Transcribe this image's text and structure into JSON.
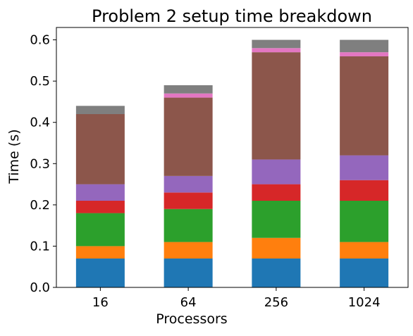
{
  "chart_data": {
    "type": "bar",
    "stacked": true,
    "title": "Problem 2 setup time breakdown",
    "xlabel": "Processors",
    "ylabel": "Time (s)",
    "categories": [
      "16",
      "64",
      "256",
      "1024"
    ],
    "ylim": [
      0,
      0.63
    ],
    "yticks": [
      "0.0",
      "0.1",
      "0.2",
      "0.3",
      "0.4",
      "0.5",
      "0.6"
    ],
    "grid": false,
    "legend": "none",
    "series": [
      {
        "color": "#1f77b4",
        "values": [
          0.07,
          0.07,
          0.07,
          0.07
        ]
      },
      {
        "color": "#ff7f0e",
        "values": [
          0.03,
          0.04,
          0.05,
          0.04
        ]
      },
      {
        "color": "#2ca02c",
        "values": [
          0.08,
          0.08,
          0.09,
          0.1
        ]
      },
      {
        "color": "#d62728",
        "values": [
          0.03,
          0.04,
          0.04,
          0.05
        ]
      },
      {
        "color": "#9467bd",
        "values": [
          0.04,
          0.04,
          0.06,
          0.06
        ]
      },
      {
        "color": "#8c564b",
        "values": [
          0.17,
          0.19,
          0.26,
          0.24
        ]
      },
      {
        "color": "#e377c2",
        "values": [
          0.0,
          0.01,
          0.01,
          0.01
        ]
      },
      {
        "color": "#7f7f7f",
        "values": [
          0.02,
          0.02,
          0.02,
          0.03
        ]
      }
    ]
  }
}
